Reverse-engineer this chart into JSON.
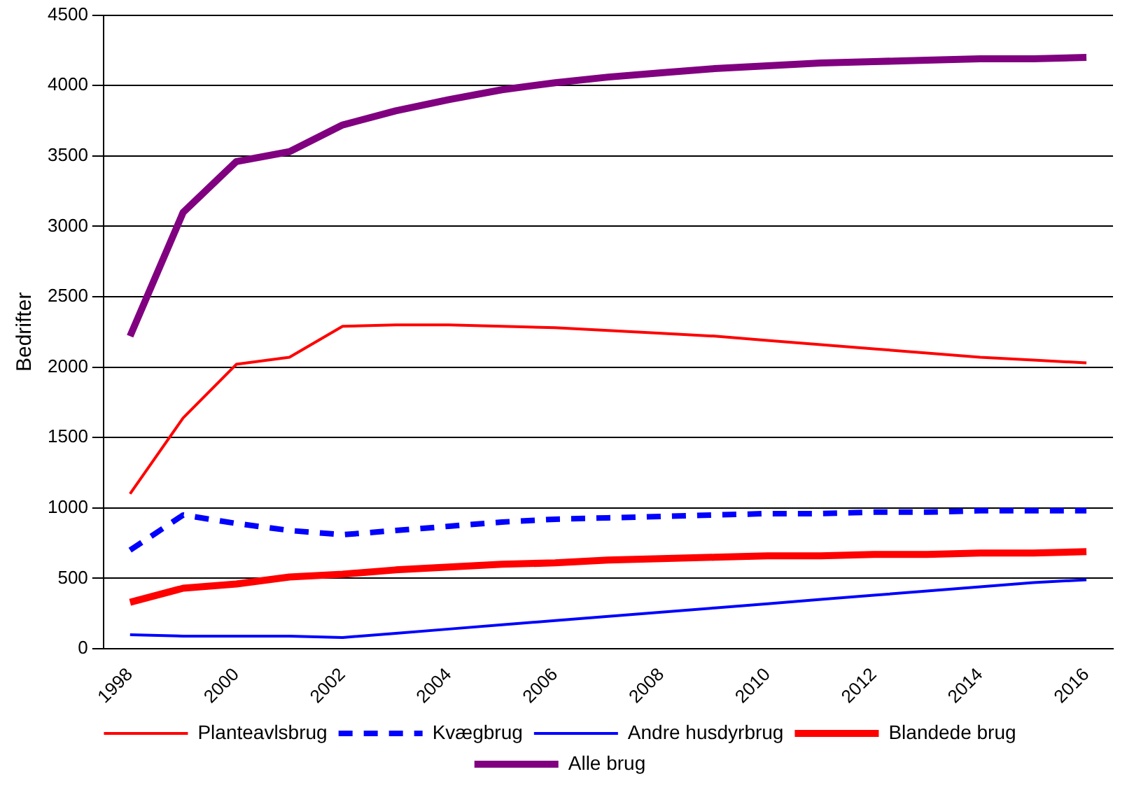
{
  "chart_data": {
    "type": "line",
    "ylabel": "Bedrifter",
    "categories": [
      "1998",
      null,
      "2000",
      null,
      "2002",
      null,
      "2004",
      null,
      "2006",
      null,
      "2008",
      null,
      "2010",
      null,
      "2012",
      null,
      "2014",
      null,
      "2016"
    ],
    "ylim": [
      0,
      4500
    ],
    "yticks": [
      0,
      500,
      1000,
      1500,
      2000,
      2500,
      3000,
      3500,
      4000,
      4500
    ],
    "grid": "y",
    "legend": "bottom",
    "marker": "none",
    "series": [
      {
        "name": "Planteavlsbrug",
        "color": "#ff0000",
        "values": [
          1100,
          1640,
          2020,
          2070,
          2290,
          2300,
          2300,
          2290,
          2280,
          2260,
          2240,
          2220,
          2190,
          2160,
          2130,
          2100,
          2070,
          2050,
          2030
        ]
      },
      {
        "name": "Kvægbrug",
        "color": "#0000ff",
        "line_style": "dashed",
        "values": [
          700,
          950,
          890,
          840,
          810,
          840,
          870,
          900,
          920,
          930,
          940,
          950,
          960,
          960,
          970,
          970,
          980,
          980,
          980
        ]
      },
      {
        "name": "Andre husdyrbrug",
        "color": "#0000ff",
        "values": [
          100,
          90,
          90,
          90,
          80,
          110,
          140,
          170,
          200,
          230,
          260,
          290,
          320,
          350,
          380,
          410,
          440,
          470,
          490
        ]
      },
      {
        "name": "Blandede brug",
        "color": "#ff0000",
        "values": [
          330,
          430,
          460,
          510,
          530,
          560,
          580,
          600,
          610,
          630,
          640,
          650,
          660,
          660,
          670,
          670,
          680,
          680,
          690
        ]
      },
      {
        "name": "Alle brug",
        "color": "#800080",
        "values": [
          2220,
          3100,
          3460,
          3530,
          3720,
          3820,
          3900,
          3970,
          4020,
          4060,
          4090,
          4120,
          4140,
          4160,
          4170,
          4180,
          4190,
          4190,
          4200
        ]
      }
    ]
  }
}
